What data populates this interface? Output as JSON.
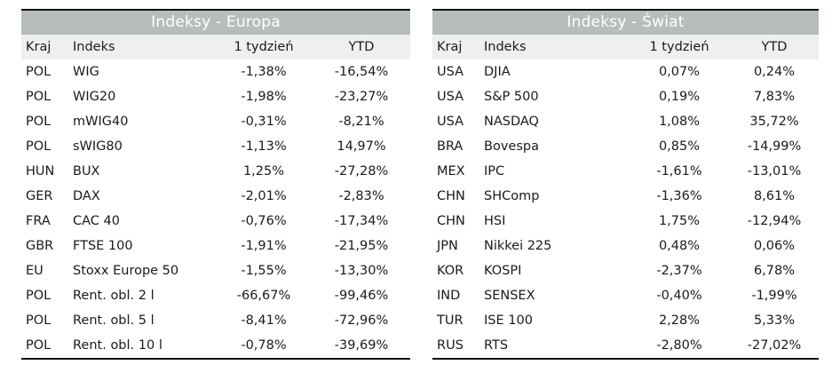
{
  "europe": {
    "title": "Indeksy - Europa",
    "headers": {
      "country": "Kraj",
      "index": "Indeks",
      "week": "1 tydzień",
      "ytd": "YTD"
    },
    "rows": [
      {
        "country": "POL",
        "index": "WIG",
        "week": "-1,38%",
        "ytd": "-16,54%"
      },
      {
        "country": "POL",
        "index": "WIG20",
        "week": "-1,98%",
        "ytd": "-23,27%"
      },
      {
        "country": "POL",
        "index": "mWIG40",
        "week": "-0,31%",
        "ytd": "-8,21%"
      },
      {
        "country": "POL",
        "index": "sWIG80",
        "week": "-1,13%",
        "ytd": "14,97%"
      },
      {
        "country": "HUN",
        "index": "BUX",
        "week": "1,25%",
        "ytd": "-27,28%"
      },
      {
        "country": "GER",
        "index": "DAX",
        "week": "-2,01%",
        "ytd": "-2,83%"
      },
      {
        "country": "FRA",
        "index": "CAC 40",
        "week": "-0,76%",
        "ytd": "-17,34%"
      },
      {
        "country": "GBR",
        "index": "FTSE 100",
        "week": "-1,91%",
        "ytd": "-21,95%"
      },
      {
        "country": "EU",
        "index": "Stoxx Europe 50",
        "week": "-1,55%",
        "ytd": "-13,30%"
      },
      {
        "country": "POL",
        "index": "Rent. obl. 2 l",
        "week": "-66,67%",
        "ytd": "-99,46%"
      },
      {
        "country": "POL",
        "index": "Rent. obl. 5 l",
        "week": "-8,41%",
        "ytd": "-72,96%"
      },
      {
        "country": "POL",
        "index": "Rent. obl. 10 l",
        "week": "-0,78%",
        "ytd": "-39,69%"
      }
    ]
  },
  "world": {
    "title": "Indeksy - Świat",
    "headers": {
      "country": "Kraj",
      "index": "Indeks",
      "week": "1 tydzień",
      "ytd": "YTD"
    },
    "rows": [
      {
        "country": "USA",
        "index": "DJIA",
        "week": "0,07%",
        "ytd": "0,24%"
      },
      {
        "country": "USA",
        "index": "S&P 500",
        "week": "0,19%",
        "ytd": "7,83%"
      },
      {
        "country": "USA",
        "index": "NASDAQ",
        "week": "1,08%",
        "ytd": "35,72%"
      },
      {
        "country": "BRA",
        "index": "Bovespa",
        "week": "0,85%",
        "ytd": "-14,99%"
      },
      {
        "country": "MEX",
        "index": "IPC",
        "week": "-1,61%",
        "ytd": "-13,01%"
      },
      {
        "country": "CHN",
        "index": "SHComp",
        "week": "-1,36%",
        "ytd": "8,61%"
      },
      {
        "country": "CHN",
        "index": "HSI",
        "week": "1,75%",
        "ytd": "-12,94%"
      },
      {
        "country": "JPN",
        "index": "Nikkei 225",
        "week": "0,48%",
        "ytd": "0,06%"
      },
      {
        "country": "KOR",
        "index": "KOSPI",
        "week": "-2,37%",
        "ytd": "6,78%"
      },
      {
        "country": "IND",
        "index": "SENSEX",
        "week": "-0,40%",
        "ytd": "-1,99%"
      },
      {
        "country": "TUR",
        "index": "ISE 100",
        "week": "2,28%",
        "ytd": "5,33%"
      },
      {
        "country": "RUS",
        "index": "RTS",
        "week": "-2,80%",
        "ytd": "-27,02%"
      }
    ]
  }
}
